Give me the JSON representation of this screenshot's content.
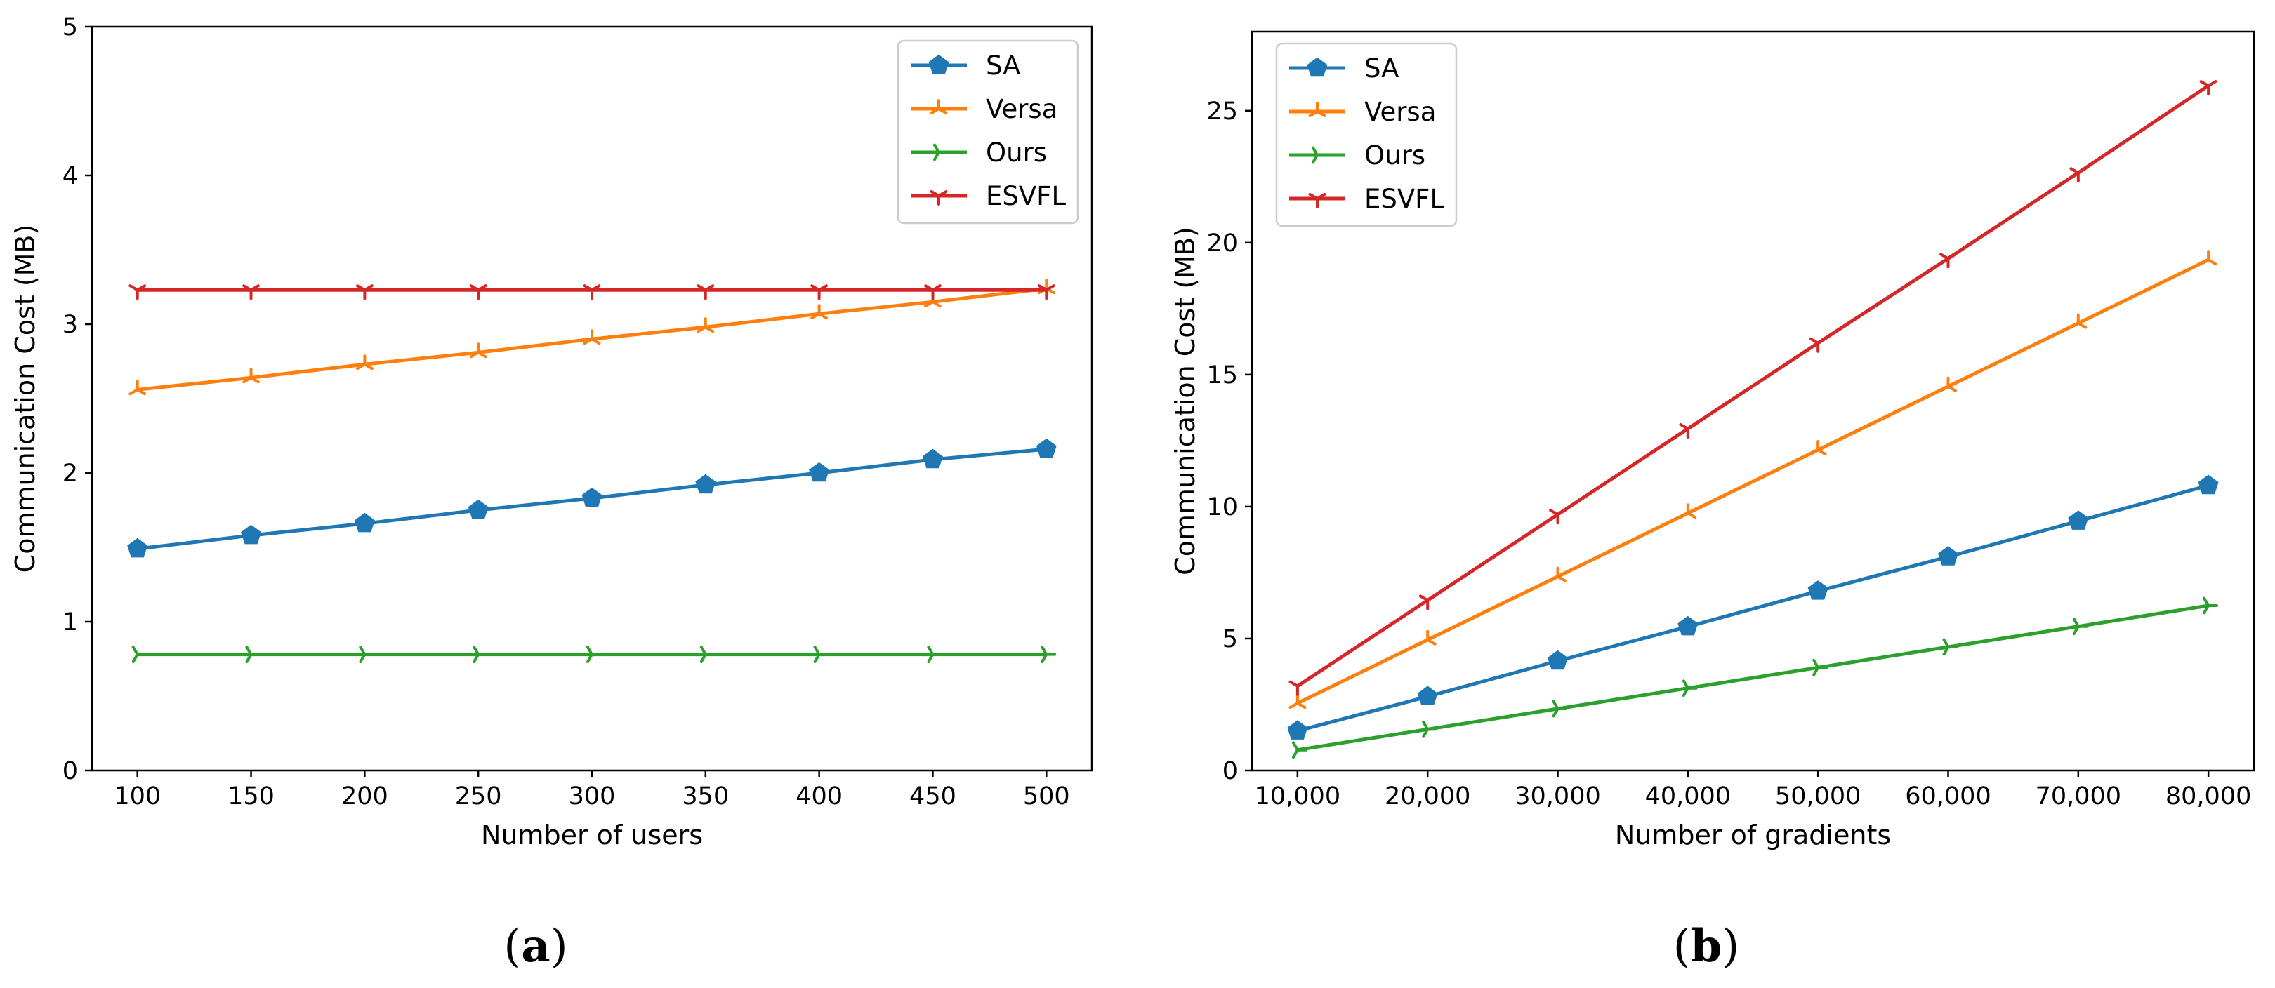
{
  "chart_data": [
    {
      "type": "line",
      "id": "a",
      "title": "",
      "caption": "a",
      "xlabel": "Number of users",
      "ylabel": "Communication Cost (MB)",
      "x": [
        100,
        150,
        200,
        250,
        300,
        350,
        400,
        450,
        500
      ],
      "x_tick_labels": [
        "100",
        "150",
        "200",
        "250",
        "300",
        "350",
        "400",
        "450",
        "500"
      ],
      "xlim": [
        80,
        520
      ],
      "ylim": [
        0,
        5
      ],
      "y_ticks": [
        0,
        1,
        2,
        3,
        4,
        5
      ],
      "y_tick_labels": [
        "0",
        "1",
        "2",
        "3",
        "4",
        "5"
      ],
      "grid": false,
      "legend_position": "top-right",
      "series": [
        {
          "name": "SA",
          "color": "#1f77b4",
          "marker": "pentagon",
          "values": [
            1.49,
            1.58,
            1.66,
            1.75,
            1.83,
            1.92,
            2.0,
            2.09,
            2.16
          ]
        },
        {
          "name": "Versa",
          "color": "#ff7f0e",
          "marker": "tri-up",
          "values": [
            2.56,
            2.64,
            2.73,
            2.81,
            2.9,
            2.98,
            3.07,
            3.15,
            3.24
          ]
        },
        {
          "name": "Ours",
          "color": "#2ca02c",
          "marker": "tri-right",
          "values": [
            0.78,
            0.78,
            0.78,
            0.78,
            0.78,
            0.78,
            0.78,
            0.78,
            0.78
          ]
        },
        {
          "name": "ESVFL",
          "color": "#d62728",
          "marker": "tri-down",
          "values": [
            3.23,
            3.23,
            3.23,
            3.23,
            3.23,
            3.23,
            3.23,
            3.23,
            3.23
          ]
        }
      ]
    },
    {
      "type": "line",
      "id": "b",
      "title": "",
      "caption": "b",
      "xlabel": "Number of gradients",
      "ylabel": "Communication Cost (MB)",
      "x": [
        10000,
        20000,
        30000,
        40000,
        50000,
        60000,
        70000,
        80000
      ],
      "x_tick_labels": [
        "10,000",
        "20,000",
        "30,000",
        "40,000",
        "50,000",
        "60,000",
        "70,000",
        "80,000"
      ],
      "xlim": [
        6500,
        83500
      ],
      "ylim": [
        0,
        28
      ],
      "y_ticks": [
        0,
        5,
        10,
        15,
        20,
        25
      ],
      "y_tick_labels": [
        "0",
        "5",
        "10",
        "15",
        "20",
        "25"
      ],
      "grid": false,
      "legend_position": "top-left",
      "series": [
        {
          "name": "SA",
          "color": "#1f77b4",
          "marker": "pentagon",
          "values": [
            1.5,
            2.8,
            4.15,
            5.45,
            6.8,
            8.1,
            9.45,
            10.8
          ]
        },
        {
          "name": "Versa",
          "color": "#ff7f0e",
          "marker": "tri-up",
          "values": [
            2.55,
            4.95,
            7.35,
            9.75,
            12.15,
            14.55,
            16.95,
            19.35
          ]
        },
        {
          "name": "Ours",
          "color": "#2ca02c",
          "marker": "tri-right",
          "values": [
            0.78,
            1.56,
            2.34,
            3.12,
            3.9,
            4.68,
            5.46,
            6.25
          ]
        },
        {
          "name": "ESVFL",
          "color": "#d62728",
          "marker": "tri-down",
          "values": [
            3.2,
            6.45,
            9.7,
            12.95,
            16.2,
            19.4,
            22.65,
            25.95
          ]
        }
      ]
    }
  ]
}
